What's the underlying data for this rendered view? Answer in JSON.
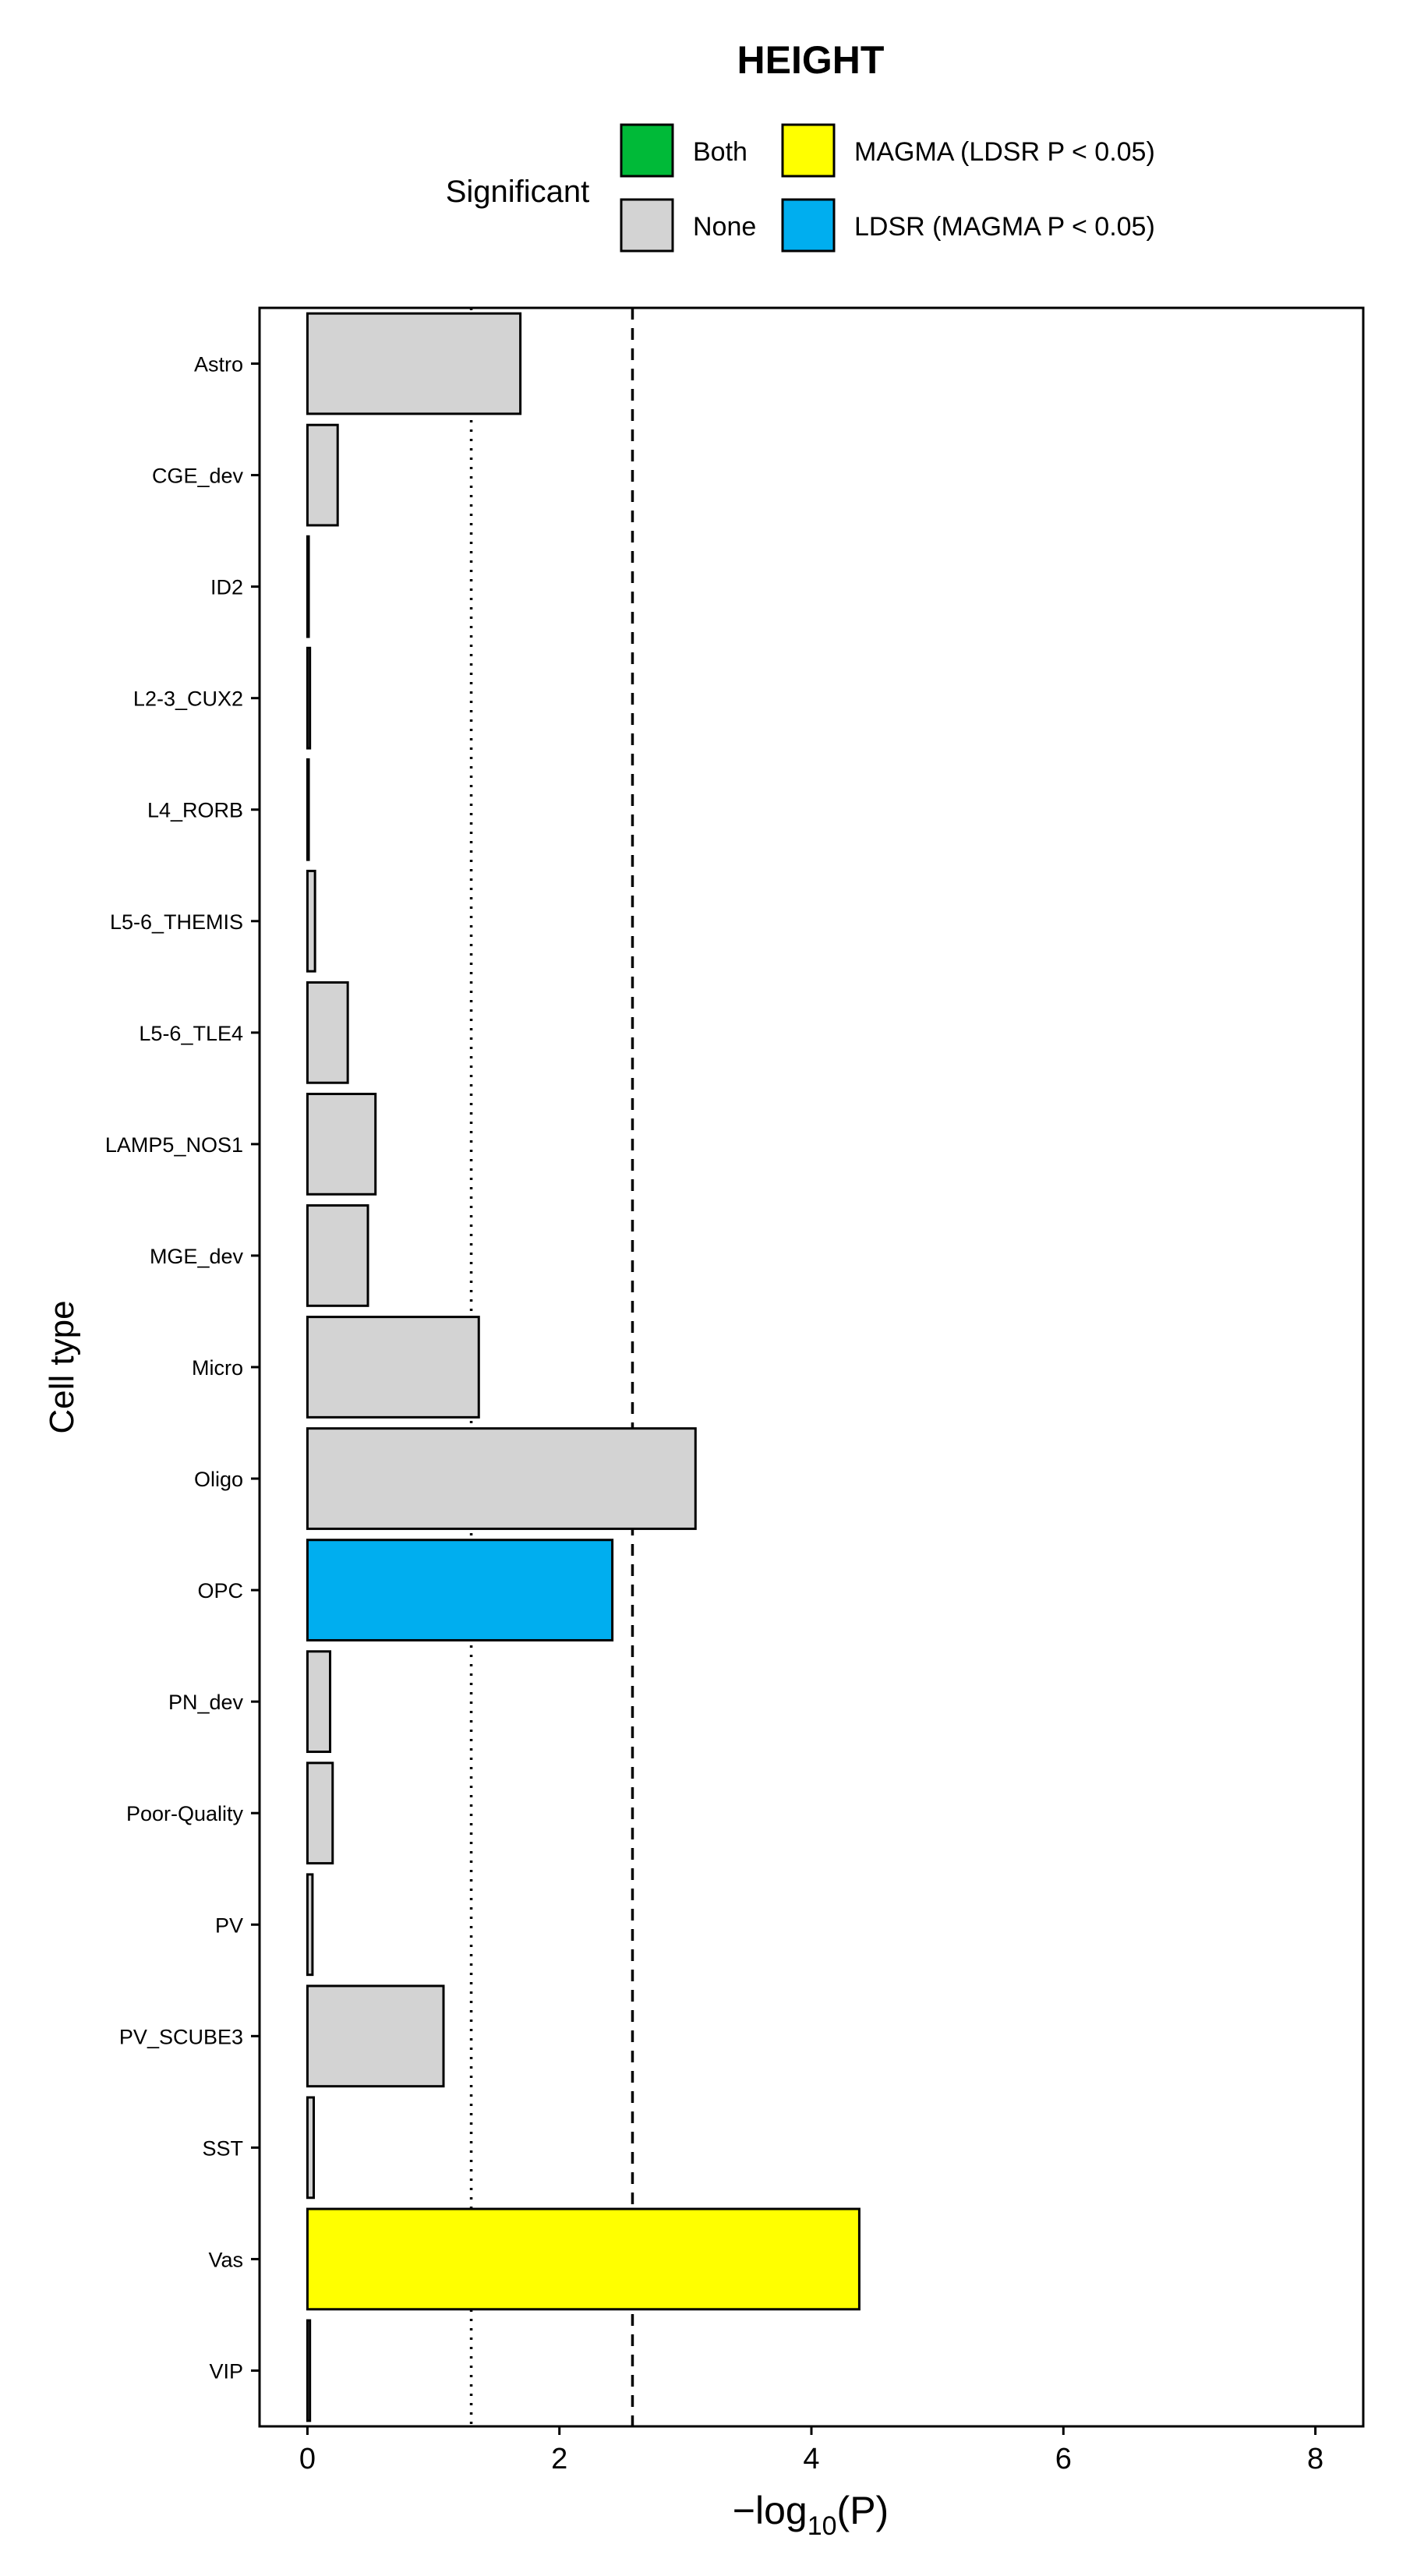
{
  "chart_data": {
    "type": "bar",
    "orientation": "horizontal",
    "title": "HEIGHT",
    "xlabel": "−log",
    "xlabel_sub": "10",
    "xlabel_tail": "(P)",
    "ylabel": "Cell type",
    "xlim": [
      -0.38,
      8.38
    ],
    "xticks": [
      0,
      2,
      4,
      6,
      8
    ],
    "grid": false,
    "legend": {
      "position": "top",
      "title": "Significant",
      "entries": [
        {
          "label": "Both",
          "color": "#00BA38"
        },
        {
          "label": "None",
          "color": "#D3D3D3"
        },
        {
          "label": "MAGMA  (LDSR P < 0.05)",
          "color": "#FFFF00"
        },
        {
          "label": "LDSR  (MAGMA P < 0.05)",
          "color": "#00AEEF"
        }
      ]
    },
    "reference_lines": [
      {
        "value": 1.3,
        "style": "dotted"
      },
      {
        "value": 2.58,
        "style": "dashed"
      }
    ],
    "categories": [
      "Astro",
      "CGE_dev",
      "ID2",
      "L2-3_CUX2",
      "L4_RORB",
      "L5-6_THEMIS",
      "L5-6_TLE4",
      "LAMP5_NOS1",
      "MGE_dev",
      "Micro",
      "Oligo",
      "OPC",
      "PN_dev",
      "Poor-Quality",
      "PV",
      "PV_SCUBE3",
      "SST",
      "Vas",
      "VIP"
    ],
    "values": [
      1.69,
      0.24,
      0.01,
      0.02,
      0.01,
      0.06,
      0.32,
      0.54,
      0.48,
      1.36,
      3.08,
      2.42,
      0.18,
      0.2,
      0.04,
      1.08,
      0.05,
      4.38,
      0.02
    ],
    "significance": [
      "None",
      "None",
      "None",
      "None",
      "None",
      "None",
      "None",
      "None",
      "None",
      "None",
      "None",
      "LDSR  (MAGMA P < 0.05)",
      "None",
      "None",
      "None",
      "None",
      "None",
      "MAGMA  (LDSR P < 0.05)",
      "None"
    ]
  }
}
